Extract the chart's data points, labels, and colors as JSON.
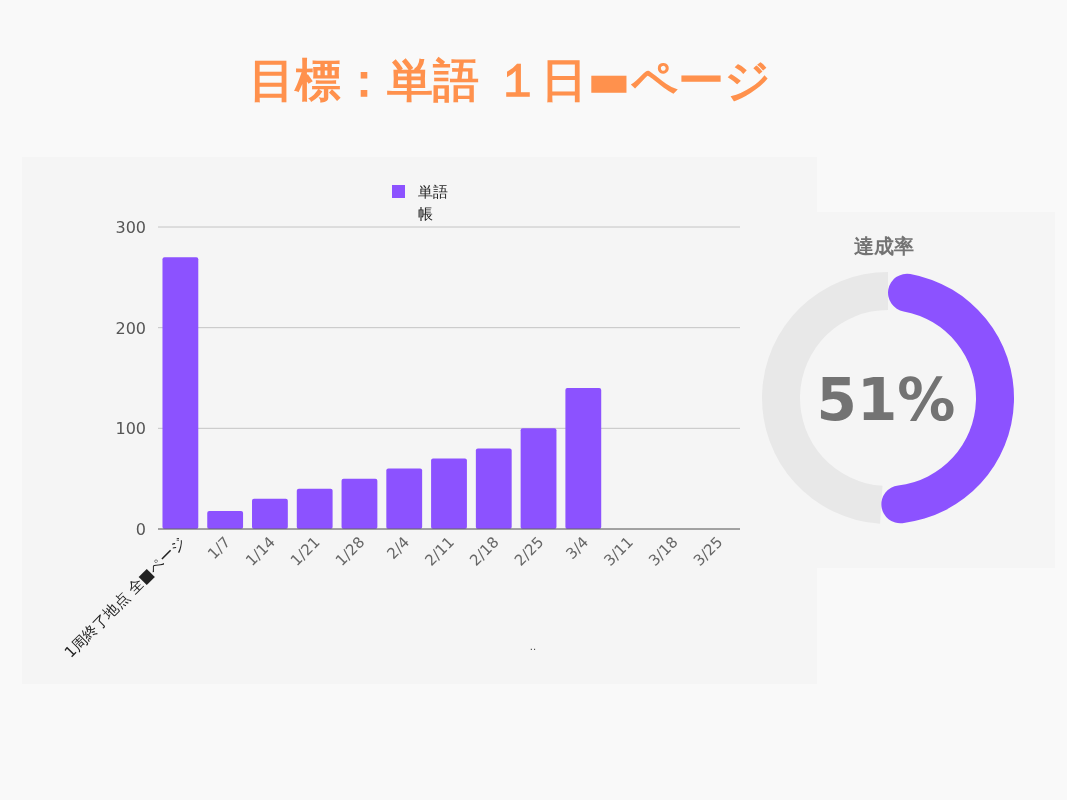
{
  "chart_data": [
    {
      "type": "bar",
      "title": "目標：単語 １日▬ページ",
      "xlabel": "..",
      "categories": [
        "1周終了地点 全■ページ",
        "1/7",
        "1/14",
        "1/21",
        "1/28",
        "2/4",
        "2/11",
        "2/18",
        "2/25",
        "3/4",
        "3/11",
        "3/18",
        "3/25"
      ],
      "series": [
        {
          "name": "単語帳",
          "color": "#8c52ff",
          "values": [
            270,
            18,
            30,
            40,
            50,
            60,
            70,
            80,
            100,
            140,
            null,
            null,
            null
          ]
        }
      ],
      "ylim": [
        0,
        300
      ],
      "yticks": [
        0,
        100,
        200,
        300
      ],
      "grid": "y",
      "legend": "top"
    },
    {
      "type": "donut",
      "title": "達成率",
      "categories": [
        null,
        null
      ],
      "values": [
        51,
        49
      ],
      "colors": [
        "#8c52ff",
        "#e8e8e8"
      ],
      "annotations": [
        "51%"
      ]
    }
  ]
}
